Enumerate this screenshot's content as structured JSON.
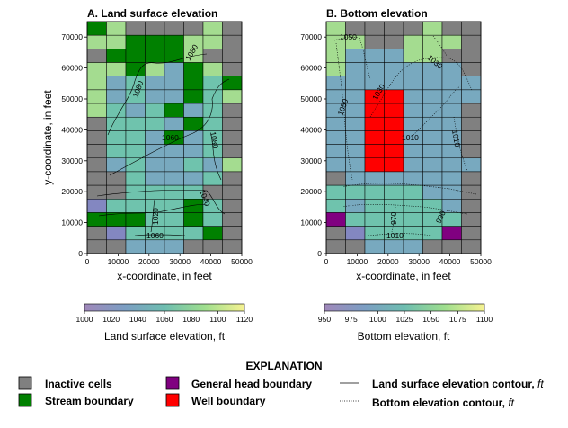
{
  "chart_data": [
    {
      "type": "heatmap",
      "title": "A. Land surface elevation",
      "xlabel": "x-coordinate, in feet",
      "ylabel": "y-coordinate, in feet",
      "xlim": [
        0,
        50000
      ],
      "ylim": [
        0,
        75000
      ],
      "xticks": [
        "0",
        "10000",
        "20000",
        "30000",
        "40000",
        "50000"
      ],
      "yticks": [
        "0",
        "10000",
        "20000",
        "30000",
        "40000",
        "50000",
        "60000",
        "70000"
      ],
      "colorbar": {
        "label": "Land surface elevation, ft",
        "min": 1000,
        "max": 1120,
        "ticks": [
          "1000",
          "1020",
          "1040",
          "1060",
          "1080",
          "1100",
          "1120"
        ]
      },
      "grid_rows_top_to_bottom": [
        "SHIIIIHI",
        "HHSSSHHI",
        "ISSSSHII",
        "HHSHMSHI",
        "HMLMMSLS",
        "HMLMMSLH",
        "HLMLSMLI",
        "ILLLMSLI",
        "ILLMSMLI",
        "ILLMMMLI",
        "IMLMMLMH",
        "IILMMMLI",
        "IILLLLII",
        "PLLLLSLI",
        "SSSLLSLI",
        "IPLLLLSI",
        "IIMMMIII"
      ],
      "contour_labels": [
        "1080",
        "1080",
        "1060",
        "1080",
        "1040",
        "1020",
        "1060"
      ]
    },
    {
      "type": "heatmap",
      "title": "B. Bottom elevation",
      "xlabel": "x-coordinate, in feet",
      "ylabel": "",
      "xlim": [
        0,
        50000
      ],
      "ylim": [
        0,
        75000
      ],
      "xticks": [
        "0",
        "10000",
        "20000",
        "30000",
        "40000",
        "50000"
      ],
      "yticks": [
        "0",
        "10000",
        "20000",
        "30000",
        "40000",
        "50000",
        "60000",
        "70000"
      ],
      "colorbar": {
        "label": "Bottom elevation, ft",
        "min": 950,
        "max": 1100,
        "ticks": [
          "950",
          "975",
          "1000",
          "1025",
          "1050",
          "1075",
          "1100"
        ]
      },
      "grid_rows_top_to_bottom": [
        "HIIIIHII",
        "HHIIHHHI",
        "HMMMHHII",
        "HMMMMMMI",
        "MMMMMMMM",
        "MMWWMMMM",
        "MMWWMMMI",
        "MMWWMMMI",
        "MMWWMMMI",
        "MMWWMMMI",
        "MMWWMMMM",
        "IMMMMMMI",
        "LLLLLMMI",
        "LMLLLLMI",
        "GLLLLLLI",
        "IPLLLLGI",
        "IIMMMIII"
      ],
      "contour_labels": [
        "1050",
        "1030",
        "1030",
        "1050",
        "1010",
        "1010",
        "970",
        "990",
        "1010"
      ]
    }
  ],
  "legend": {
    "title": "EXPLANATION",
    "items": [
      {
        "label": "Inactive cells",
        "color": "#808080"
      },
      {
        "label": "Stream boundary",
        "color": "#008000"
      },
      {
        "label": "General head boundary",
        "color": "#800080"
      },
      {
        "label": "Well boundary",
        "color": "#ff0000"
      }
    ],
    "lines": [
      {
        "label_text": "Land surface elevation contour, ",
        "unit": "ft",
        "style": "solid"
      },
      {
        "label_text": "Bottom elevation contour, ",
        "unit": "ft",
        "style": "dotted"
      }
    ]
  },
  "colors": {
    "inactive": "#808080",
    "stream": "#008000",
    "ghb": "#800080",
    "well": "#ff0000",
    "codes": {
      "I": "#808080",
      "S": "#008000",
      "G": "#800080",
      "W": "#ff0000",
      "L": "#6fc3ad",
      "M": "#78a9bf",
      "P": "#8387c1",
      "H": "#a4dc90",
      "Y": "#c6e46a"
    }
  }
}
